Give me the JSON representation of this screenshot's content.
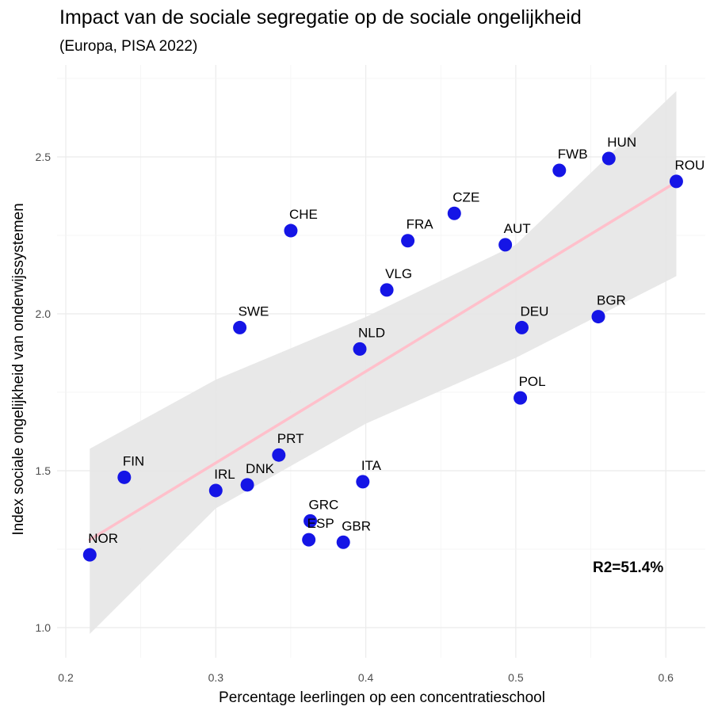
{
  "chart_data": {
    "type": "scatter",
    "title": "Impact van de sociale segregatie op de sociale ongelijkheid",
    "subtitle": "(Europa, PISA 2022)",
    "xlabel": "Percentage leerlingen op een concentratieschool",
    "ylabel": "Index sociale ongelijkheid van onderwijssystemen",
    "xlim": [
      0.2,
      0.6
    ],
    "ylim": [
      1.0,
      2.5
    ],
    "xticks": [
      "0.2",
      "0.3",
      "0.4",
      "0.5",
      "0.6"
    ],
    "yticks": [
      "1.0",
      "1.5",
      "2.0",
      "2.5"
    ],
    "grid": true,
    "point_color": "#1515e6",
    "trend_color": "#ffc0cb",
    "band_color": "#e6e6e6",
    "annotation": "R2=51.4%",
    "points": [
      {
        "label": "NOR",
        "x": 0.216,
        "y": 1.232
      },
      {
        "label": "FIN",
        "x": 0.239,
        "y": 1.479
      },
      {
        "label": "IRL",
        "x": 0.3,
        "y": 1.437
      },
      {
        "label": "SWE",
        "x": 0.316,
        "y": 1.956
      },
      {
        "label": "DNK",
        "x": 0.321,
        "y": 1.455
      },
      {
        "label": "PRT",
        "x": 0.342,
        "y": 1.55
      },
      {
        "label": "CHE",
        "x": 0.35,
        "y": 2.265
      },
      {
        "label": "ESP",
        "x": 0.362,
        "y": 1.28
      },
      {
        "label": "GRC",
        "x": 0.363,
        "y": 1.34
      },
      {
        "label": "GBR",
        "x": 0.385,
        "y": 1.272
      },
      {
        "label": "NLD",
        "x": 0.396,
        "y": 1.888
      },
      {
        "label": "ITA",
        "x": 0.398,
        "y": 1.465
      },
      {
        "label": "VLG",
        "x": 0.414,
        "y": 2.076
      },
      {
        "label": "FRA",
        "x": 0.428,
        "y": 2.233
      },
      {
        "label": "CZE",
        "x": 0.459,
        "y": 2.32
      },
      {
        "label": "AUT",
        "x": 0.493,
        "y": 2.22
      },
      {
        "label": "POL",
        "x": 0.503,
        "y": 1.732
      },
      {
        "label": "DEU",
        "x": 0.504,
        "y": 1.956
      },
      {
        "label": "FWB",
        "x": 0.529,
        "y": 2.457
      },
      {
        "label": "BGR",
        "x": 0.555,
        "y": 1.991
      },
      {
        "label": "HUN",
        "x": 0.562,
        "y": 2.495
      },
      {
        "label": "ROU",
        "x": 0.607,
        "y": 2.422
      }
    ],
    "trend": {
      "x": [
        0.216,
        0.607
      ],
      "y": [
        1.28,
        2.42
      ]
    },
    "confidence_band": {
      "x": [
        0.216,
        0.3,
        0.4,
        0.5,
        0.607
      ],
      "lower": [
        0.98,
        1.38,
        1.65,
        1.86,
        2.12
      ],
      "upper": [
        1.57,
        1.79,
        1.99,
        2.22,
        2.71
      ]
    }
  }
}
